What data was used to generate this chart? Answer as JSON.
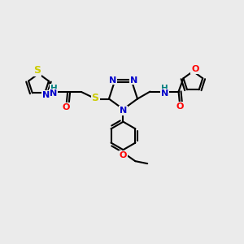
{
  "bg_color": "#ebebeb",
  "bond_color": "#000000",
  "bond_width": 1.5,
  "atom_colors": {
    "N": "#0000cc",
    "O": "#ff0000",
    "S": "#cccc00",
    "H": "#008080",
    "C": "#000000"
  },
  "font_size": 8.5
}
